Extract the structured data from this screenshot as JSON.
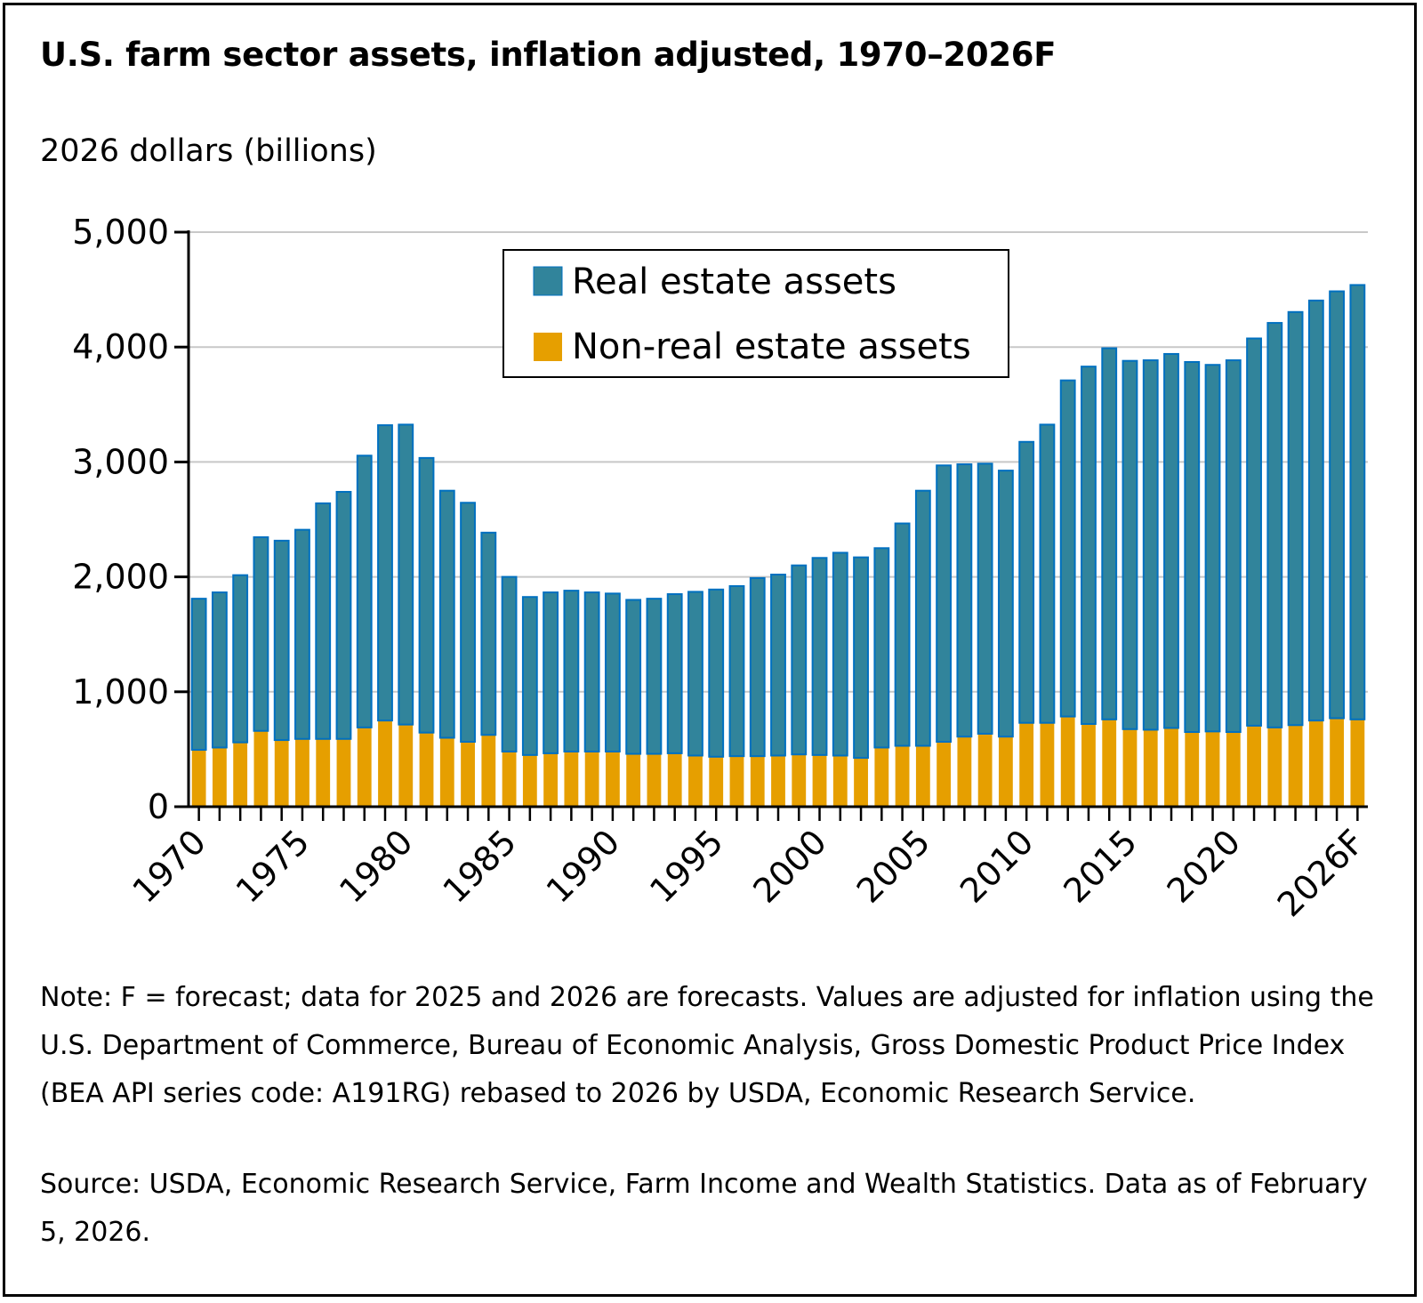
{
  "chart_data": {
    "type": "bar",
    "stacked": true,
    "title": "U.S. farm sector assets, inflation adjusted, 1970–2026F",
    "ylabel": "2026 dollars (billions)",
    "xlabel": "",
    "ylim": [
      0,
      5000
    ],
    "yticks": [
      0,
      1000,
      2000,
      3000,
      4000,
      5000
    ],
    "ytick_labels": [
      "0",
      "1,000",
      "2,000",
      "3,000",
      "4,000",
      "5,000"
    ],
    "xtick_labels": [
      {
        "index": 0,
        "label": "1970"
      },
      {
        "index": 5,
        "label": "1975"
      },
      {
        "index": 10,
        "label": "1980"
      },
      {
        "index": 15,
        "label": "1985"
      },
      {
        "index": 20,
        "label": "1990"
      },
      {
        "index": 25,
        "label": "1995"
      },
      {
        "index": 30,
        "label": "2000"
      },
      {
        "index": 35,
        "label": "2005"
      },
      {
        "index": 40,
        "label": "2010"
      },
      {
        "index": 45,
        "label": "2015"
      },
      {
        "index": 50,
        "label": "2020"
      },
      {
        "index": 56,
        "label": "2026F"
      }
    ],
    "grid": true,
    "legend_position": "top-center",
    "categories": [
      "1970",
      "1971",
      "1972",
      "1973",
      "1974",
      "1975",
      "1976",
      "1977",
      "1978",
      "1979",
      "1980",
      "1981",
      "1982",
      "1983",
      "1984",
      "1985",
      "1986",
      "1987",
      "1988",
      "1989",
      "1990",
      "1991",
      "1992",
      "1993",
      "1994",
      "1995",
      "1996",
      "1997",
      "1998",
      "1999",
      "2000",
      "2001",
      "2002",
      "2003",
      "2004",
      "2005",
      "2006",
      "2007",
      "2008",
      "2009",
      "2010",
      "2011",
      "2012",
      "2013",
      "2014",
      "2015",
      "2016",
      "2017",
      "2018",
      "2019",
      "2020",
      "2021",
      "2022",
      "2023",
      "2024",
      "2025F",
      "2026F"
    ],
    "series": [
      {
        "name": "Non-real estate assets",
        "color": "#E69F00",
        "values": [
          495,
          515,
          560,
          660,
          580,
          590,
          590,
          590,
          690,
          750,
          715,
          645,
          600,
          565,
          625,
          480,
          450,
          465,
          480,
          480,
          480,
          460,
          460,
          465,
          445,
          435,
          440,
          440,
          445,
          455,
          450,
          445,
          425,
          515,
          530,
          530,
          565,
          610,
          635,
          610,
          730,
          730,
          785,
          720,
          760,
          675,
          670,
          685,
          650,
          655,
          650,
          705,
          690,
          710,
          750,
          770,
          760
        ]
      },
      {
        "name": "Real estate assets",
        "color": "#31849B",
        "values": [
          1315,
          1350,
          1455,
          1685,
          1735,
          1820,
          2050,
          2150,
          2365,
          2570,
          2610,
          2390,
          2150,
          2080,
          1760,
          1520,
          1375,
          1400,
          1400,
          1385,
          1375,
          1340,
          1350,
          1385,
          1425,
          1455,
          1480,
          1550,
          1575,
          1645,
          1715,
          1765,
          1745,
          1735,
          1935,
          2220,
          2405,
          2370,
          2350,
          2315,
          2445,
          2595,
          2925,
          3110,
          3230,
          3205,
          3215,
          3255,
          3220,
          3190,
          3235,
          3370,
          3520,
          3595,
          3655,
          3715,
          3780
        ]
      }
    ]
  },
  "notes": {
    "note": "Note: F = forecast; data for 2025 and 2026 are forecasts. Values are adjusted for inflation using the U.S. Department of Commerce, Bureau of Economic Analysis, Gross Domestic Product Price Index (BEA API series code: A191RG) rebased to 2026 by USDA, Economic Research Service.",
    "source": "Source: USDA, Economic Research Service, Farm Income and Wealth Statistics. Data as of February 5, 2026."
  },
  "legend": [
    {
      "label": "Real estate assets",
      "color": "#31849B"
    },
    {
      "label": "Non-real estate assets",
      "color": "#E69F00"
    }
  ]
}
